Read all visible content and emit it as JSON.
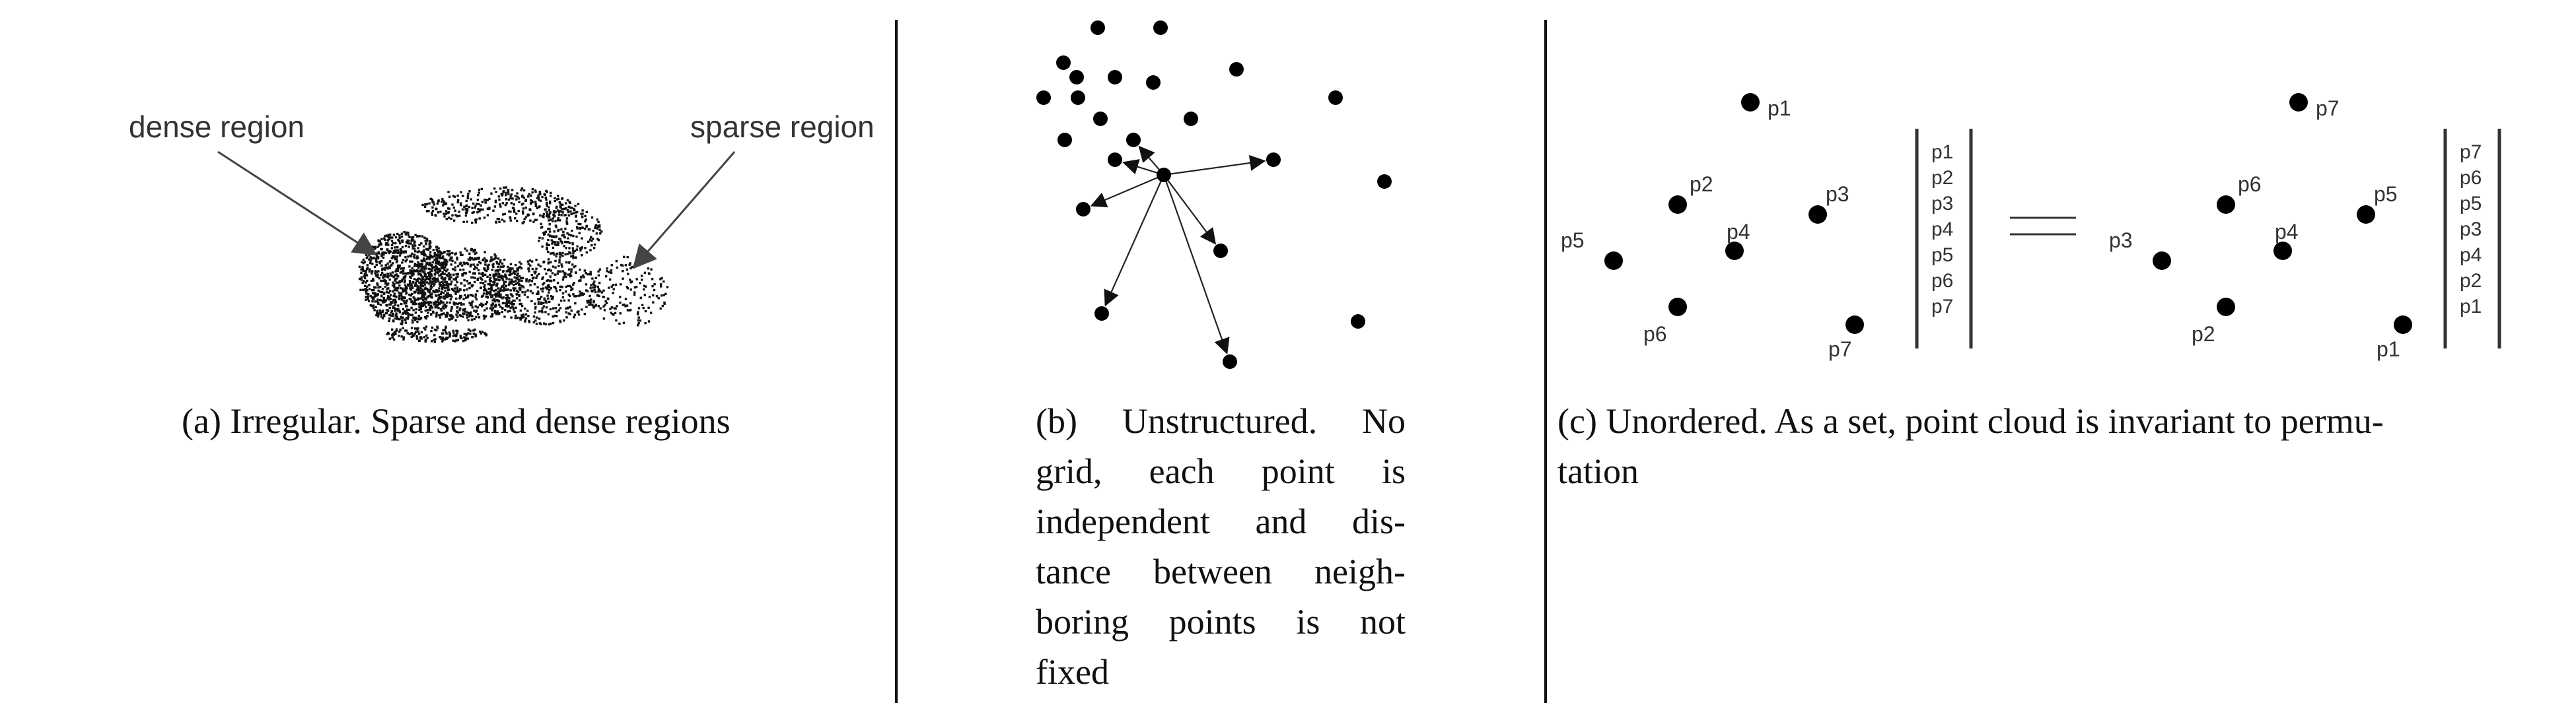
{
  "panel_a": {
    "dense_label": "dense region",
    "sparse_label": "sparse region",
    "caption": "(a) Irregular. Sparse and dense regions"
  },
  "panel_b": {
    "caption_lines": [
      "(b) Unstructured. No",
      "grid, each point is",
      "independent and dis-",
      "tance between neigh-",
      "boring points is not",
      "fixed"
    ]
  },
  "panel_c": {
    "left_points": [
      "p1",
      "p2",
      "p3",
      "p4",
      "p5",
      "p6",
      "p7"
    ],
    "left_vector": [
      "p1",
      "p2",
      "p3",
      "p4",
      "p5",
      "p6",
      "p7"
    ],
    "right_points": [
      "p7",
      "p6",
      "p5",
      "p4",
      "p3",
      "p2",
      "p1"
    ],
    "right_vector": [
      "p7",
      "p6",
      "p5",
      "p3",
      "p4",
      "p2",
      "p1"
    ],
    "caption_lines": [
      "(c) Unordered. As a set, point cloud is invariant to permu-",
      "tation"
    ]
  }
}
